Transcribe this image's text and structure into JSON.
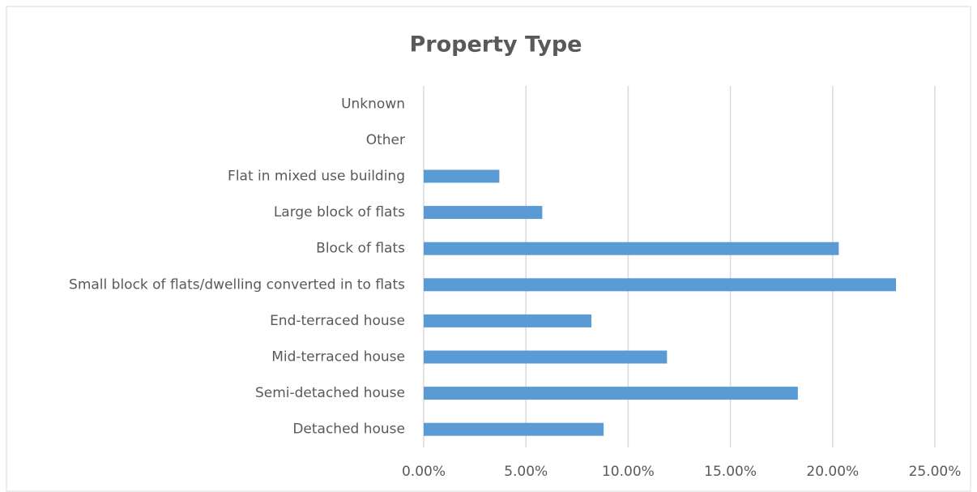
{
  "chart_data": {
    "type": "bar",
    "orientation": "horizontal",
    "title": "Property Type",
    "categories": [
      "Detached house",
      "Semi-detached house",
      "Mid-terraced house",
      "End-terraced house",
      "Small block of flats/dwelling converted in to flats",
      "Block of flats",
      "Large block of flats",
      "Flat in mixed use building",
      "Other",
      "Unknown"
    ],
    "values": [
      8.8,
      18.3,
      11.9,
      8.2,
      23.1,
      20.3,
      5.8,
      3.7,
      0,
      0
    ],
    "color": "#5b9bd5",
    "xlim": [
      0,
      25
    ],
    "xticks": [
      {
        "value": 0,
        "label": "0.00%"
      },
      {
        "value": 5,
        "label": "5.00%"
      },
      {
        "value": 10,
        "label": "10.00%"
      },
      {
        "value": 15,
        "label": "15.00%"
      },
      {
        "value": 20,
        "label": "20.00%"
      },
      {
        "value": 25,
        "label": "25.00%"
      }
    ],
    "grid": true
  }
}
